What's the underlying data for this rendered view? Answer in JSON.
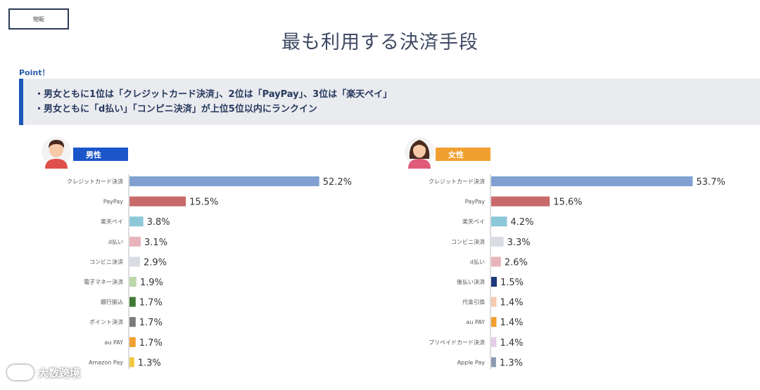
{
  "header": {
    "tag": "物販",
    "title": "最も利用する決済手段"
  },
  "point": {
    "label": "Point！",
    "lines": [
      "・男女ともに1位は「クレジットカード決済」、2位は「PayPay」、3位は「楽天ペイ」",
      "・男女ともに「d払い」「コンピニ決済」が上位5位以内にランクイン"
    ]
  },
  "footer": {
    "brand": "大数跨境"
  },
  "chart_data": [
    {
      "type": "bar",
      "orientation": "horizontal",
      "title": "男性",
      "value_suffix": "%",
      "xlim": [
        0,
        60
      ],
      "categories": [
        "クレジットカード決済",
        "PayPay",
        "楽天ペイ",
        "d払い",
        "コンビニ決済",
        "電子マネー決済",
        "銀行振込",
        "ポイント決済",
        "au PAY",
        "Amazon Pay"
      ],
      "values": [
        52.2,
        15.5,
        3.8,
        3.1,
        2.9,
        1.9,
        1.7,
        1.7,
        1.7,
        1.3
      ],
      "colors": [
        "#7fa0d1",
        "#c96a6a",
        "#8cc8d8",
        "#e8b4bc",
        "#d9dce3",
        "#bdd7a8",
        "#3f7a34",
        "#7a7a7a",
        "#f0a030",
        "#f0c83c"
      ]
    },
    {
      "type": "bar",
      "orientation": "horizontal",
      "title": "女性",
      "value_suffix": "%",
      "xlim": [
        0,
        60
      ],
      "categories": [
        "クレジットカード決済",
        "PayPay",
        "楽天ペイ",
        "コンビニ決済",
        "d払い",
        "後払い決済",
        "代金引換",
        "au PAY",
        "プリペイドカード決済",
        "Apple Pay"
      ],
      "values": [
        53.7,
        15.6,
        4.2,
        3.3,
        2.6,
        1.5,
        1.4,
        1.4,
        1.4,
        1.3
      ],
      "colors": [
        "#7fa0d1",
        "#c96a6a",
        "#8cc8d8",
        "#d9dce3",
        "#e8b4bc",
        "#1f3a7a",
        "#f4cbb0",
        "#f0a030",
        "#e6cde8",
        "#8a9bb0"
      ]
    }
  ]
}
